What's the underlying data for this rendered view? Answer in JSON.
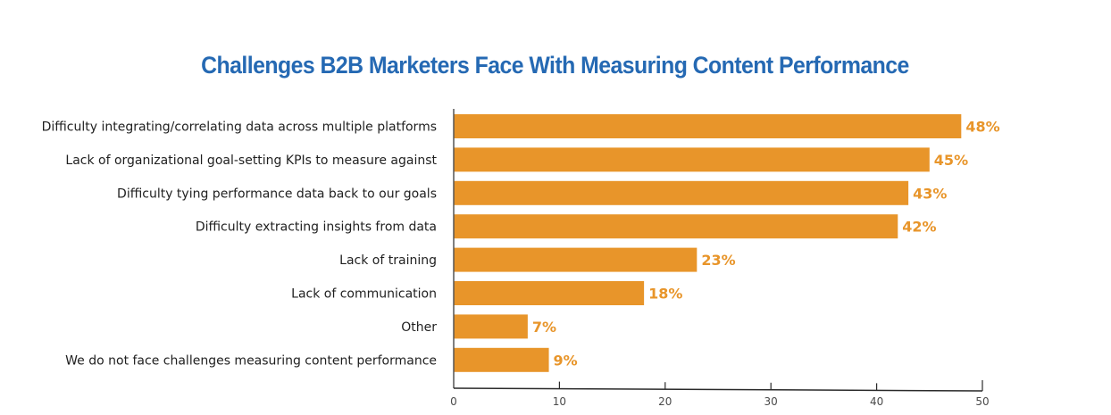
{
  "chart_data": {
    "type": "bar",
    "orientation": "horizontal",
    "title": "Challenges B2B Marketers Face With Measuring Content Performance",
    "xlabel": "",
    "ylabel": "",
    "categories": [
      "Difficulty integrating/correlating data across multiple platforms",
      "Lack of organizational goal-setting KPIs to measure against",
      "Difficulty tying performance data back to our goals",
      "Difficulty extracting insights from data",
      "Lack of training",
      "Lack of communication",
      "Other",
      "We do not face challenges measuring content performance"
    ],
    "values": [
      48,
      45,
      43,
      42,
      23,
      18,
      7,
      9
    ],
    "value_labels": [
      "48%",
      "45%",
      "43%",
      "42%",
      "23%",
      "18%",
      "7%",
      "9%"
    ],
    "xlim": [
      0,
      50
    ],
    "xticks": [
      "0",
      "10",
      "20",
      "30",
      "40",
      "50"
    ],
    "xtick_values": [
      0,
      10,
      20,
      30,
      40,
      50
    ],
    "grid": false,
    "legend": "none",
    "colors": {
      "bar": "#e8952a",
      "value_label": "#e8952a",
      "title": "#2569b3",
      "axis": "#555555"
    }
  }
}
